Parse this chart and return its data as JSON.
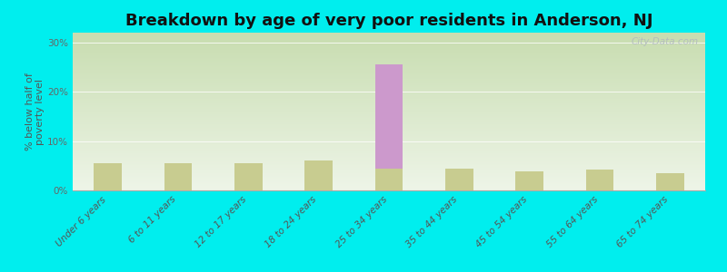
{
  "title": "Breakdown by age of very poor residents in Anderson, NJ",
  "ylabel": "% below half of\npoverty level",
  "categories": [
    "Under 6 years",
    "6 to 11 years",
    "12 to 17 years",
    "18 to 24 years",
    "25 to 34 years",
    "35 to 44 years",
    "45 to 54 years",
    "55 to 64 years",
    "65 to 74 years"
  ],
  "anderson_values": [
    0,
    0,
    0,
    0,
    25.5,
    0,
    0,
    0,
    0
  ],
  "nj_values": [
    5.5,
    5.5,
    5.5,
    6.0,
    4.5,
    4.5,
    3.8,
    4.2,
    3.5
  ],
  "anderson_color": "#cc99cc",
  "nj_color": "#c8cc90",
  "background_color": "#00eeee",
  "plot_bg_top": "#c8ddb0",
  "plot_bg_bottom": "#eef5e8",
  "ylim": [
    0,
    32
  ],
  "yticks": [
    0,
    10,
    20,
    30
  ],
  "ytick_labels": [
    "0%",
    "10%",
    "20%",
    "30%"
  ],
  "bar_width": 0.4,
  "title_fontsize": 13,
  "axis_fontsize": 8,
  "tick_fontsize": 7.5,
  "legend_fontsize": 9,
  "watermark": "City-Data.com"
}
